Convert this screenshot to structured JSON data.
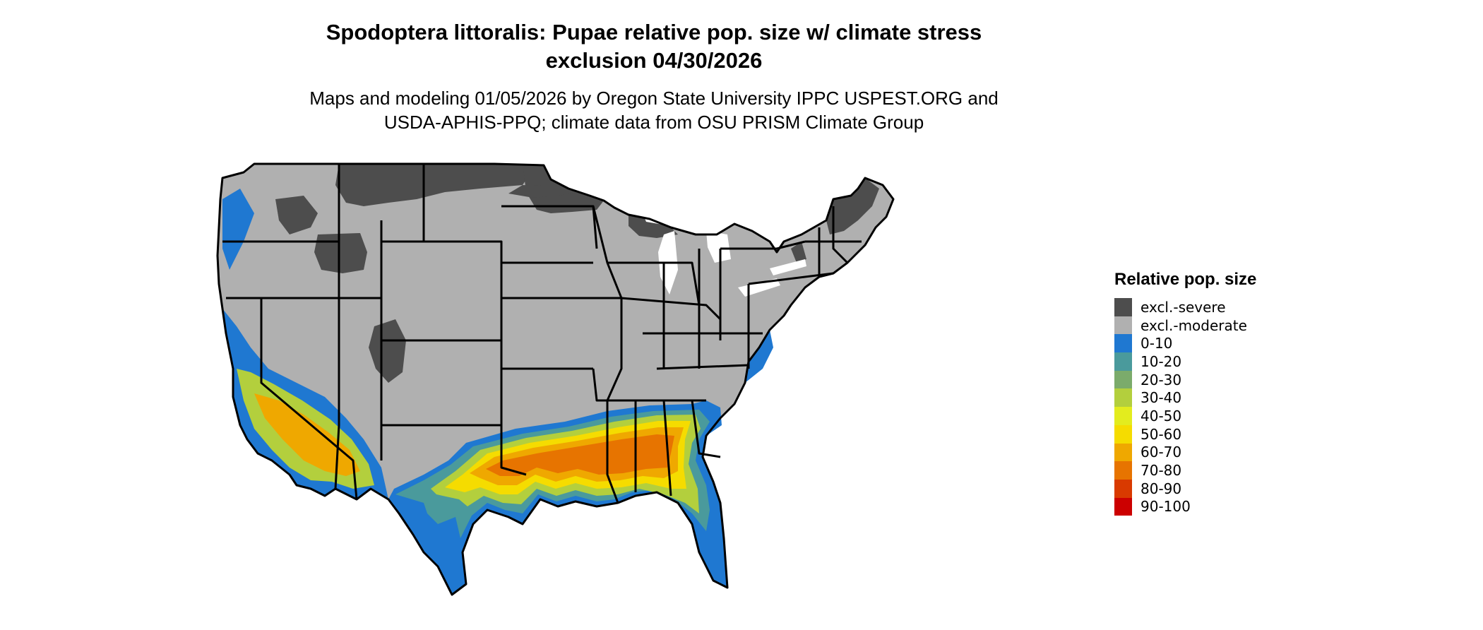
{
  "title": {
    "line1": "Spodoptera littoralis: Pupae relative pop. size w/ climate stress",
    "line2": "exclusion 04/30/2026"
  },
  "subtitle": {
    "line1": "Maps and modeling 01/05/2026 by Oregon State University IPPC USPEST.ORG and",
    "line2": "USDA-APHIS-PPQ; climate data from OSU PRISM Climate Group"
  },
  "legend": {
    "title": "Relative pop. size",
    "items": [
      {
        "label": "excl.-severe",
        "color": "#4d4d4d"
      },
      {
        "label": "excl.-moderate",
        "color": "#b0b0b0"
      },
      {
        "label": "0-10",
        "color": "#1f78d1"
      },
      {
        "label": "10-20",
        "color": "#4a9a9c"
      },
      {
        "label": "20-30",
        "color": "#7bab6b"
      },
      {
        "label": "30-40",
        "color": "#b3cf3d"
      },
      {
        "label": "40-50",
        "color": "#e3ec1e"
      },
      {
        "label": "50-60",
        "color": "#f5dc00"
      },
      {
        "label": "60-70",
        "color": "#efa800"
      },
      {
        "label": "70-80",
        "color": "#e77400"
      },
      {
        "label": "80-90",
        "color": "#d93a00"
      },
      {
        "label": "90-100",
        "color": "#cc0000"
      }
    ]
  },
  "map": {
    "region": "contiguous-us",
    "boundary_color": "#000000",
    "water_color": "#ffffff"
  }
}
